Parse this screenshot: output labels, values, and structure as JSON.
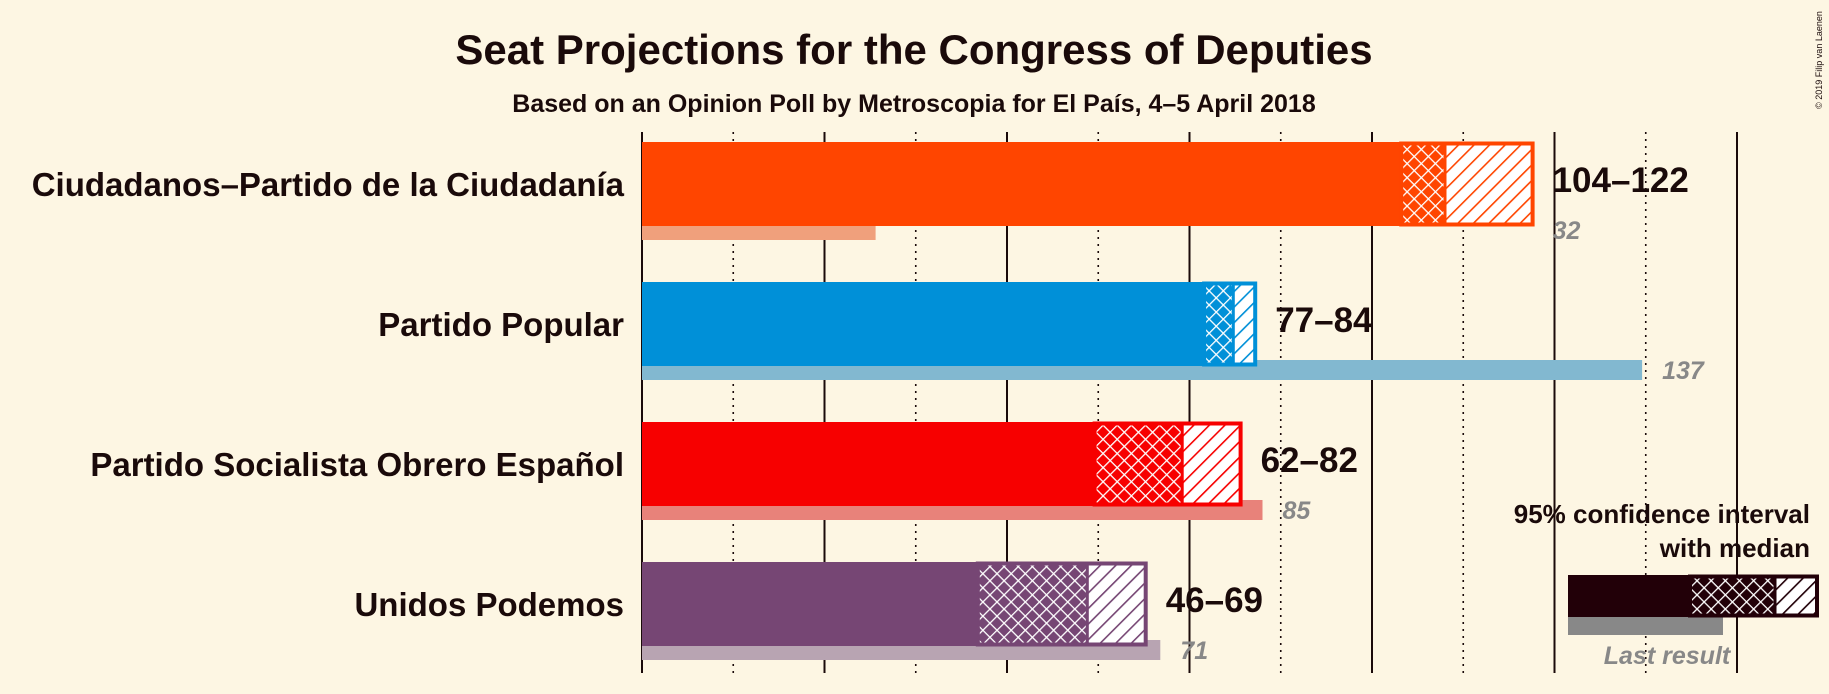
{
  "title": "Seat Projections for the Congress of Deputies",
  "subtitle": "Based on an Opinion Poll by Metroscopia for El País, 4–5 April 2018",
  "copyright": "© 2019 Filip van Laenen",
  "legend": {
    "line1": "95% confidence interval",
    "line2": "with median",
    "last_result": "Last result",
    "placement": "bottom-right"
  },
  "chart_data": {
    "type": "bar",
    "orientation": "horizontal",
    "title": "Seat Projections for the Congress of Deputies",
    "subtitle": "Based on an Opinion Poll by Metroscopia for El País, 4–5 April 2018",
    "xlim": [
      0,
      150
    ],
    "grid": "vertical",
    "categories": [
      "Ciudadanos–Partido de la Ciudadanía",
      "Partido Popular",
      "Partido Socialista Obrero Español",
      "Unidos Podemos"
    ],
    "series": [
      {
        "label": "Ciudadanos–Partido de la Ciudadanía",
        "color": "#ff4500",
        "last_color": "#f0a07c",
        "ci_low": 104,
        "median": 110,
        "ci_high": 122,
        "range_label": "104–122",
        "last_result": 32,
        "last_label": "32"
      },
      {
        "label": "Partido Popular",
        "color": "#0090d8",
        "last_color": "#82b8d0",
        "ci_low": 77,
        "median": 81,
        "ci_high": 84,
        "range_label": "77–84",
        "last_result": 137,
        "last_label": "137"
      },
      {
        "label": "Partido Socialista Obrero Español",
        "color": "#f70000",
        "last_color": "#e8827a",
        "ci_low": 62,
        "median": 74,
        "ci_high": 82,
        "range_label": "62–82",
        "last_result": 85,
        "last_label": "85"
      },
      {
        "label": "Unidos Podemos",
        "color": "#764674",
        "last_color": "#b8a4b2",
        "ci_low": 46,
        "median": 61,
        "ci_high": 69,
        "range_label": "46–69",
        "last_result": 71,
        "last_label": "71"
      }
    ]
  }
}
